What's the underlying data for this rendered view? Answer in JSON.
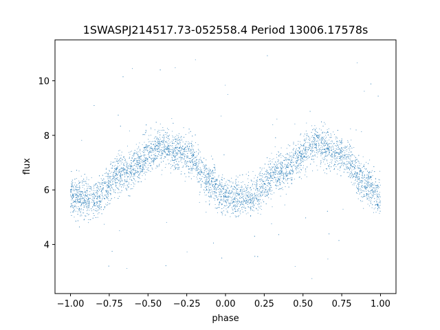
{
  "chart_data": {
    "type": "scatter",
    "title": "1SWASPJ214517.73-052558.4 Period 13006.17578s",
    "xlabel": "phase",
    "ylabel": "flux",
    "xlim": [
      -1.1,
      1.1
    ],
    "ylim": [
      2.2,
      11.5
    ],
    "xticks": [
      -1.0,
      -0.75,
      -0.5,
      -0.25,
      0.0,
      0.25,
      0.5,
      0.75,
      1.0
    ],
    "xtick_labels": [
      "−1.00",
      "−0.75",
      "−0.50",
      "−0.25",
      "0.00",
      "0.25",
      "0.50",
      "0.75",
      "1.00"
    ],
    "yticks": [
      4,
      6,
      8,
      10
    ],
    "ytick_labels": [
      "4",
      "6",
      "8",
      "10"
    ],
    "grid": false,
    "marker_color": "#1f77b4",
    "x_range": [
      -1.0,
      1.0
    ],
    "curve": {
      "description_points": [
        {
          "x": -1.0,
          "y": 5.7
        },
        {
          "x": -0.85,
          "y": 5.7
        },
        {
          "x": -0.65,
          "y": 6.7
        },
        {
          "x": -0.4,
          "y": 7.6
        },
        {
          "x": -0.25,
          "y": 7.3
        },
        {
          "x": -0.1,
          "y": 6.3
        },
        {
          "x": 0.0,
          "y": 5.7
        },
        {
          "x": 0.15,
          "y": 5.7
        },
        {
          "x": 0.35,
          "y": 6.7
        },
        {
          "x": 0.6,
          "y": 7.6
        },
        {
          "x": 0.75,
          "y": 7.3
        },
        {
          "x": 0.9,
          "y": 6.3
        },
        {
          "x": 1.0,
          "y": 5.7
        }
      ],
      "scatter_sigma": 0.35,
      "outlier_range": [
        2.6,
        11.0
      ]
    }
  }
}
